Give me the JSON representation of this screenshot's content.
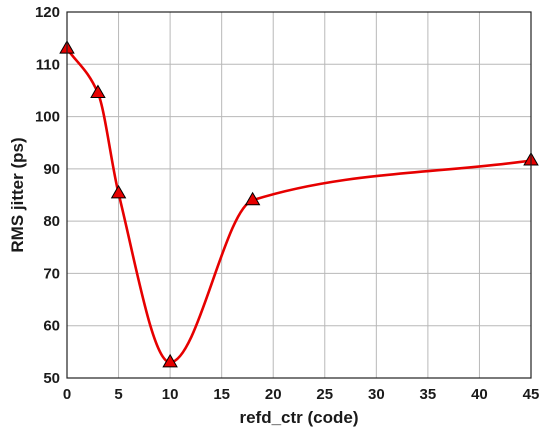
{
  "chart_data": {
    "type": "line",
    "title": "",
    "xlabel": "refd_ctr (code)",
    "ylabel": "RMS jitter (ps)",
    "xlim": [
      0,
      45
    ],
    "ylim": [
      50,
      120
    ],
    "xticks": [
      0,
      5,
      10,
      15,
      20,
      25,
      30,
      35,
      40,
      45
    ],
    "yticks": [
      50,
      60,
      70,
      80,
      90,
      100,
      110,
      120
    ],
    "grid": true,
    "series": [
      {
        "x": [
          0,
          3,
          5,
          10,
          18,
          45
        ],
        "y": [
          113,
          104.5,
          85.3,
          53,
          84,
          91.6
        ],
        "color": "#e60000",
        "marker": "triangle",
        "marker_color": "#e60000",
        "smooth": true
      }
    ]
  }
}
